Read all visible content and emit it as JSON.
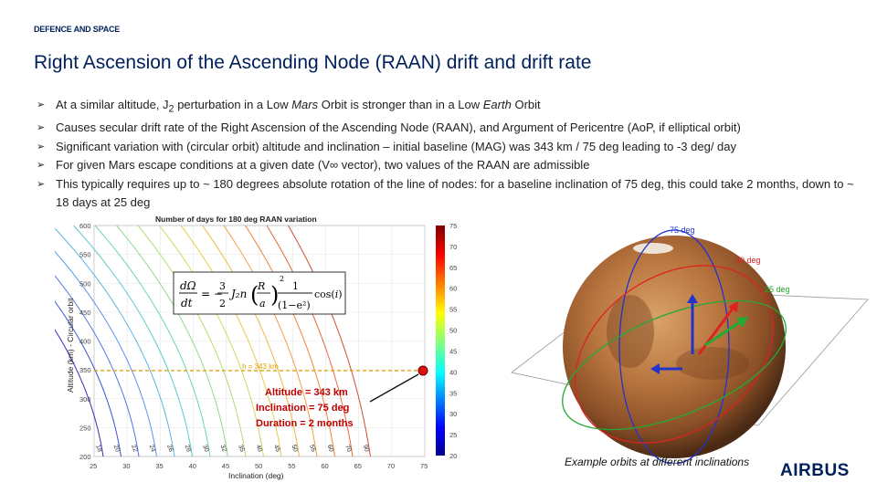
{
  "header": {
    "kicker": "DEFENCE AND SPACE",
    "title": "Right Ascension of the Ascending Node (RAAN) drift and drift rate"
  },
  "bullets": [
    {
      "pre": "At a similar altitude, J",
      "sub": "2",
      "mid": " perturbation in a Low ",
      "em1": "Mars",
      "mid2": " Orbit is stronger than in a Low ",
      "em2": "Earth",
      "post": " Orbit"
    },
    {
      "text": "Causes secular drift rate of the Right Ascension of the Ascending Node (RAAN), and Argument of Pericentre (AoP, if elliptical orbit)"
    },
    {
      "text": "Significant variation with (circular orbit) altitude and inclination – initial baseline (MAG) was 343 km / 75 deg leading to -3 deg/ day"
    },
    {
      "text": "For given Mars escape conditions at a given date (V∞ vector), two values of the RAAN are admissible"
    },
    {
      "text": "This typically requires up to ~ 180 degrees absolute rotation of the line of nodes: for a baseline inclination of 75 deg, this could take 2 months, down to ~ 18 days at 25 deg"
    }
  ],
  "plot": {
    "title": "Number of days for 180 deg RAAN variation",
    "xlabel": "Inclination (deg)",
    "ylabel": "Altitude (km) - Circular orbit",
    "xticks": [
      "25",
      "30",
      "35",
      "40",
      "45",
      "50",
      "55",
      "60",
      "65",
      "70",
      "75"
    ],
    "yticks": [
      "600",
      "550",
      "500",
      "450",
      "400",
      "350",
      "300",
      "250",
      "200"
    ],
    "baseline_label": "h = 343 km",
    "contour_labels": [
      "18",
      "20",
      "22",
      "24",
      "26",
      "28",
      "30",
      "32",
      "35",
      "40",
      "45",
      "50",
      "55",
      "60",
      "70",
      "90"
    ],
    "colorbar_ticks": [
      "75",
      "70",
      "65",
      "60",
      "55",
      "50",
      "45",
      "40",
      "35",
      "30",
      "25",
      "20"
    ],
    "annotation": [
      "Altitude = 343 km",
      "Inclination = 75 deg",
      "Duration = 2 months"
    ]
  },
  "orbits": {
    "labels": [
      "75 deg",
      "40 deg",
      "25 deg"
    ],
    "colors": {
      "i75": "#2233cc",
      "i40": "#dd2222",
      "i25": "#22aa33"
    }
  },
  "caption": "Example orbits at different inclinations",
  "logo": "AIRBUS"
}
